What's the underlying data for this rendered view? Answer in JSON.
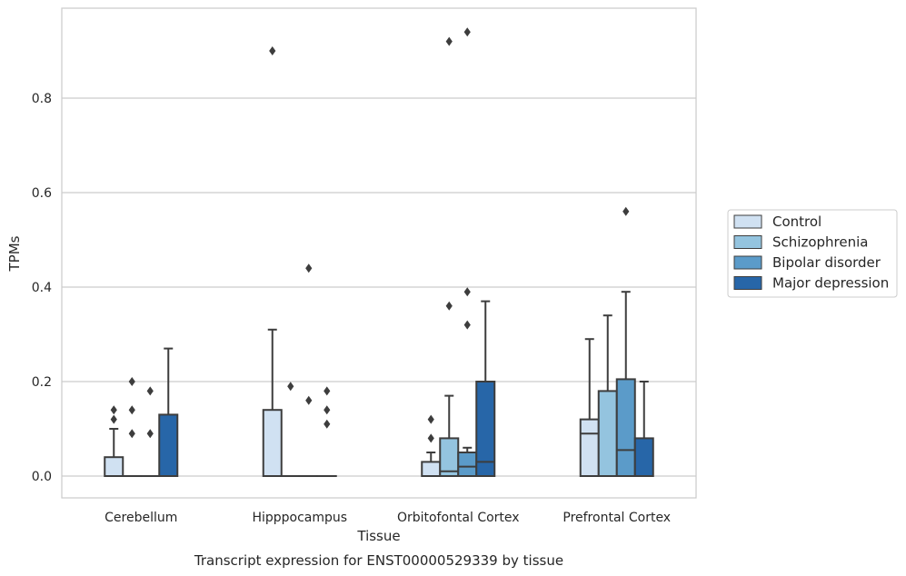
{
  "chart_data": {
    "type": "box",
    "title": "Transcript expression for ENST00000529339 by tissue",
    "xlabel": "Tissue",
    "ylabel": "TPMs",
    "ylim": [
      -0.045,
      0.99
    ],
    "yticks": [
      "0.0",
      "0.2",
      "0.4",
      "0.6",
      "0.8"
    ],
    "ytick_values": [
      0.0,
      0.2,
      0.4,
      0.6,
      0.8
    ],
    "grid": "horizontal",
    "legend_position": "right",
    "categories": [
      "Cerebellum",
      "Hipppocampus",
      "Orbitofontal Cortex",
      "Prefrontal Cortex"
    ],
    "series": [
      {
        "name": "Control",
        "color": "#d0e1f2",
        "boxes": [
          {
            "q1": 0.0,
            "median": 0.0,
            "q3": 0.04,
            "whisker_low": 0.0,
            "whisker_high": 0.1,
            "outliers": [
              0.12,
              0.14
            ]
          },
          {
            "q1": 0.0,
            "median": 0.0,
            "q3": 0.14,
            "whisker_low": 0.0,
            "whisker_high": 0.31,
            "outliers": [
              0.9
            ]
          },
          {
            "q1": 0.0,
            "median": 0.0,
            "q3": 0.03,
            "whisker_low": 0.0,
            "whisker_high": 0.05,
            "outliers": [
              0.08,
              0.12
            ]
          },
          {
            "q1": 0.0,
            "median": 0.09,
            "q3": 0.12,
            "whisker_low": 0.0,
            "whisker_high": 0.29,
            "outliers": []
          }
        ]
      },
      {
        "name": "Schizophrenia",
        "color": "#94c4df",
        "boxes": [
          {
            "q1": 0.0,
            "median": 0.0,
            "q3": 0.0,
            "whisker_low": 0.0,
            "whisker_high": 0.0,
            "outliers": [
              0.09,
              0.14,
              0.2
            ]
          },
          {
            "q1": 0.0,
            "median": 0.0,
            "q3": 0.0,
            "whisker_low": 0.0,
            "whisker_high": 0.0,
            "outliers": [
              0.19
            ]
          },
          {
            "q1": 0.0,
            "median": 0.01,
            "q3": 0.08,
            "whisker_low": 0.0,
            "whisker_high": 0.17,
            "outliers": [
              0.36,
              0.92
            ]
          },
          {
            "q1": 0.0,
            "median": 0.0,
            "q3": 0.18,
            "whisker_low": 0.0,
            "whisker_high": 0.34,
            "outliers": []
          }
        ]
      },
      {
        "name": "Bipolar disorder",
        "color": "#5b9bc9",
        "boxes": [
          {
            "q1": 0.0,
            "median": 0.0,
            "q3": 0.0,
            "whisker_low": 0.0,
            "whisker_high": 0.0,
            "outliers": [
              0.09,
              0.18
            ]
          },
          {
            "q1": 0.0,
            "median": 0.0,
            "q3": 0.0,
            "whisker_low": 0.0,
            "whisker_high": 0.0,
            "outliers": [
              0.16,
              0.44
            ]
          },
          {
            "q1": 0.0,
            "median": 0.02,
            "q3": 0.05,
            "whisker_low": 0.0,
            "whisker_high": 0.06,
            "outliers": [
              0.32,
              0.39,
              0.94
            ]
          },
          {
            "q1": 0.0,
            "median": 0.055,
            "q3": 0.205,
            "whisker_low": 0.0,
            "whisker_high": 0.39,
            "outliers": [
              0.56
            ]
          }
        ]
      },
      {
        "name": "Major depression",
        "color": "#2766a8",
        "boxes": [
          {
            "q1": 0.0,
            "median": 0.0,
            "q3": 0.13,
            "whisker_low": 0.0,
            "whisker_high": 0.27,
            "outliers": []
          },
          {
            "q1": 0.0,
            "median": 0.0,
            "q3": 0.0,
            "whisker_low": 0.0,
            "whisker_high": 0.0,
            "outliers": [
              0.11,
              0.14,
              0.18
            ]
          },
          {
            "q1": 0.0,
            "median": 0.03,
            "q3": 0.2,
            "whisker_low": 0.0,
            "whisker_high": 0.37,
            "outliers": []
          },
          {
            "q1": 0.0,
            "median": 0.0,
            "q3": 0.08,
            "whisker_low": 0.0,
            "whisker_high": 0.2,
            "outliers": []
          }
        ]
      }
    ]
  }
}
